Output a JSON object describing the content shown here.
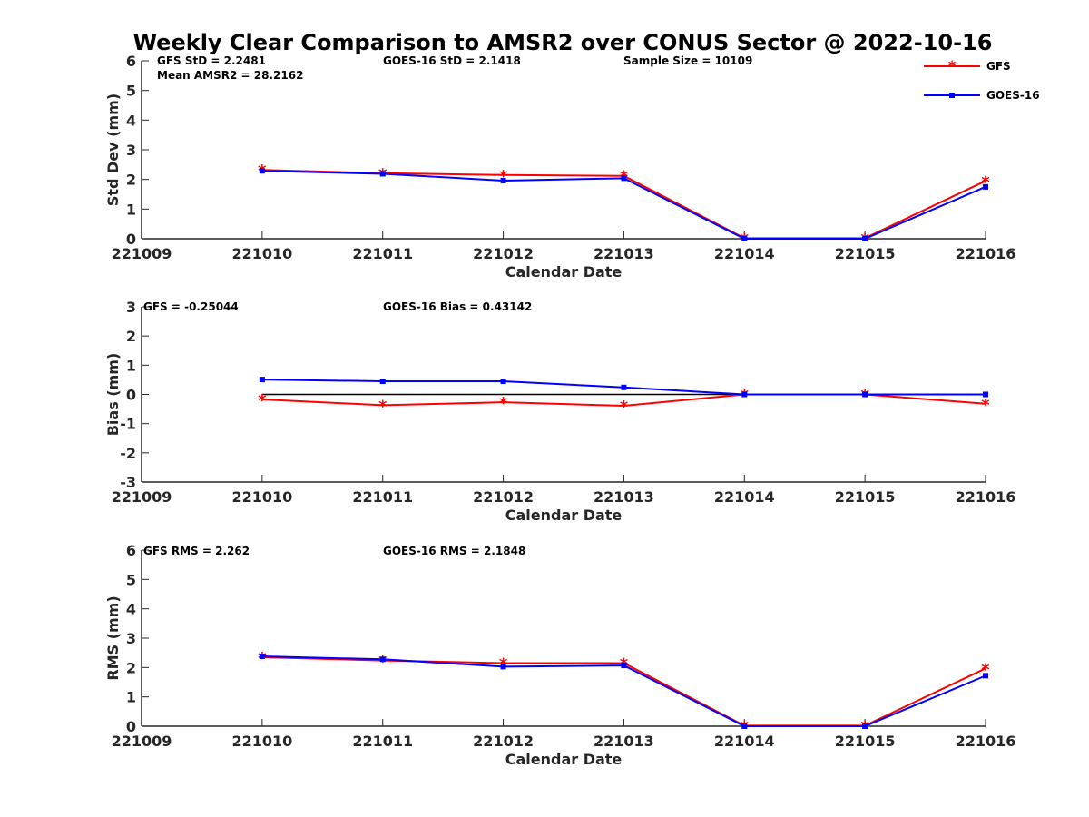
{
  "title": "Weekly Clear Comparison to AMSR2 over CONUS Sector @ 2022-10-16",
  "colors": {
    "GFS": "#ff0000",
    "GOES-16": "#0000ff",
    "zero_line": "#000000"
  },
  "legend": {
    "position": "top-right",
    "entries": [
      "GFS",
      "GOES-16"
    ]
  },
  "chart_data": [
    {
      "type": "line",
      "ylabel": "Std Dev (mm)",
      "xlabel": "Calendar Date",
      "x": [
        "221009",
        "221010",
        "221011",
        "221012",
        "221013",
        "221014",
        "221015",
        "221016"
      ],
      "ylim": [
        0,
        6
      ],
      "yticks": [
        0,
        1,
        2,
        3,
        4,
        5,
        6
      ],
      "annotations": [
        "GFS StD = 2.2481",
        "GOES-16 StD = 2.1418",
        "Sample Size = 10109",
        "Mean AMSR2 = 28.2162"
      ],
      "series": [
        {
          "name": "GFS",
          "values": [
            null,
            2.32,
            2.21,
            2.15,
            2.12,
            0.02,
            0.02,
            1.95
          ]
        },
        {
          "name": "GOES-16",
          "values": [
            null,
            2.29,
            2.19,
            1.96,
            2.04,
            0.0,
            0.0,
            1.75
          ]
        }
      ]
    },
    {
      "type": "line",
      "ylabel": "Bias (mm)",
      "xlabel": "Calendar Date",
      "x": [
        "221009",
        "221010",
        "221011",
        "221012",
        "221013",
        "221014",
        "221015",
        "221016"
      ],
      "ylim": [
        -3,
        3
      ],
      "yticks": [
        -3,
        -2,
        -1,
        0,
        1,
        2,
        3
      ],
      "annotations": [
        "GFS = -0.25044",
        "GOES-16 Bias  = 0.43142"
      ],
      "series": [
        {
          "name": "GFS",
          "values": [
            null,
            -0.17,
            -0.37,
            -0.27,
            -0.39,
            0.0,
            0.0,
            -0.32
          ]
        },
        {
          "name": "GOES-16",
          "values": [
            null,
            0.51,
            0.45,
            0.45,
            0.24,
            0.0,
            0.0,
            0.0
          ]
        }
      ],
      "reference_line": 0
    },
    {
      "type": "line",
      "ylabel": "RMS (mm)",
      "xlabel": "Calendar Date",
      "x": [
        "221009",
        "221010",
        "221011",
        "221012",
        "221013",
        "221014",
        "221015",
        "221016"
      ],
      "ylim": [
        0,
        6
      ],
      "yticks": [
        0,
        1,
        2,
        3,
        4,
        5,
        6
      ],
      "annotations": [
        "GFS RMS = 2.262",
        "GOES-16 RMS = 2.1848"
      ],
      "series": [
        {
          "name": "GFS",
          "values": [
            null,
            2.35,
            2.24,
            2.15,
            2.15,
            0.02,
            0.02,
            1.97
          ]
        },
        {
          "name": "GOES-16",
          "values": [
            null,
            2.38,
            2.28,
            2.03,
            2.07,
            0.0,
            0.0,
            1.72
          ]
        }
      ]
    }
  ]
}
